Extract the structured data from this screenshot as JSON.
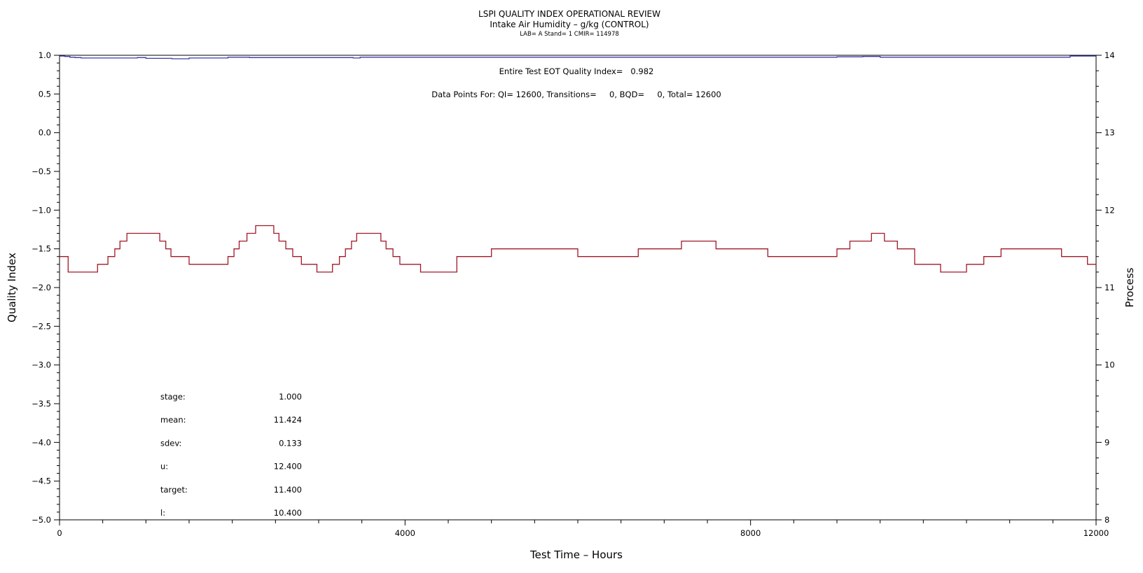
{
  "chart_data": {
    "type": "line",
    "title": "LSPI QUALITY INDEX OPERATIONAL REVIEW",
    "subtitle": "Intake Air Humidity – g/kg (CONTROL)",
    "subsubtitle": "LAB= A Stand= 1 CMIR= 114978",
    "xlabel": "Test Time – Hours",
    "ylabel_left": "Quality Index",
    "ylabel_right": "Process",
    "xlim": [
      0,
      12000
    ],
    "ylim_left": [
      -5.0,
      1.0
    ],
    "ylim_right": [
      8,
      14
    ],
    "x_ticks": [
      "0",
      "4000",
      "8000",
      "12000"
    ],
    "y_left_ticks": [
      "1.0",
      "0.5",
      "0.0",
      "−0.5",
      "−1.0",
      "−1.5",
      "−2.0",
      "−2.5",
      "−3.0",
      "−3.5",
      "−4.0",
      "−4.5",
      "−5.0"
    ],
    "y_left_values": [
      1.0,
      0.5,
      0.0,
      -0.5,
      -1.0,
      -1.5,
      -2.0,
      -2.5,
      -3.0,
      -3.5,
      -4.0,
      -4.5,
      -5.0
    ],
    "y_right_ticks": [
      "14",
      "13",
      "12",
      "11",
      "10",
      "9",
      "8"
    ],
    "y_right_values": [
      14,
      13,
      12,
      11,
      10,
      9,
      8
    ],
    "grid": false,
    "annotations": {
      "eot_quality_index": "Entire Test EOT Quality Index=   0.982",
      "data_points": "Data Points For: QI= 12600, Transitions=     0, BQD=     0, Total= 12600"
    },
    "stats": [
      {
        "label": "stage:",
        "value": "1.000"
      },
      {
        "label": "mean:",
        "value": "11.424"
      },
      {
        "label": "sdev:",
        "value": "0.133"
      },
      {
        "label": "u:",
        "value": "12.400"
      },
      {
        "label": "target:",
        "value": "11.400"
      },
      {
        "label": "l:",
        "value": "10.400"
      }
    ],
    "series": [
      {
        "axis": "left",
        "color": "#3a3aa8",
        "x": [
          0,
          60,
          120,
          180,
          250,
          600,
          900,
          1000,
          1300,
          1500,
          1950,
          2200,
          2550,
          3000,
          3400,
          3480,
          4000,
          5000,
          6000,
          7000,
          8000,
          8500,
          9000,
          9300,
          9500,
          10000,
          11000,
          11500,
          11700,
          12000
        ],
        "y": [
          0.99,
          0.985,
          0.975,
          0.97,
          0.965,
          0.965,
          0.97,
          0.96,
          0.955,
          0.965,
          0.975,
          0.97,
          0.97,
          0.97,
          0.965,
          0.975,
          0.975,
          0.975,
          0.975,
          0.975,
          0.975,
          0.975,
          0.98,
          0.985,
          0.975,
          0.975,
          0.975,
          0.975,
          0.99,
          0.99
        ]
      },
      {
        "axis": "right",
        "color": "#a01828",
        "x": [
          0,
          100,
          440,
          560,
          640,
          700,
          780,
          1000,
          1160,
          1230,
          1290,
          1350,
          1500,
          1880,
          1950,
          2020,
          2080,
          2170,
          2270,
          2480,
          2540,
          2620,
          2700,
          2800,
          2980,
          3160,
          3240,
          3310,
          3380,
          3440,
          3720,
          3780,
          3860,
          3940,
          4180,
          4400,
          4600,
          4700,
          5000,
          5400,
          6000,
          6400,
          6700,
          7200,
          7600,
          7900,
          8200,
          8600,
          8900,
          9000,
          9150,
          9400,
          9550,
          9700,
          9900,
          10200,
          10500,
          10700,
          10900,
          11200,
          11600,
          11900,
          12000
        ],
        "y": [
          11.4,
          11.2,
          11.3,
          11.4,
          11.5,
          11.6,
          11.7,
          11.7,
          11.6,
          11.5,
          11.4,
          11.4,
          11.3,
          11.3,
          11.4,
          11.5,
          11.6,
          11.7,
          11.8,
          11.7,
          11.6,
          11.5,
          11.4,
          11.3,
          11.2,
          11.3,
          11.4,
          11.5,
          11.6,
          11.7,
          11.6,
          11.5,
          11.4,
          11.3,
          11.2,
          11.2,
          11.4,
          11.4,
          11.5,
          11.5,
          11.4,
          11.4,
          11.5,
          11.6,
          11.5,
          11.5,
          11.4,
          11.4,
          11.4,
          11.5,
          11.6,
          11.7,
          11.6,
          11.5,
          11.3,
          11.2,
          11.3,
          11.4,
          11.5,
          11.5,
          11.4,
          11.3,
          11.3
        ]
      }
    ]
  }
}
